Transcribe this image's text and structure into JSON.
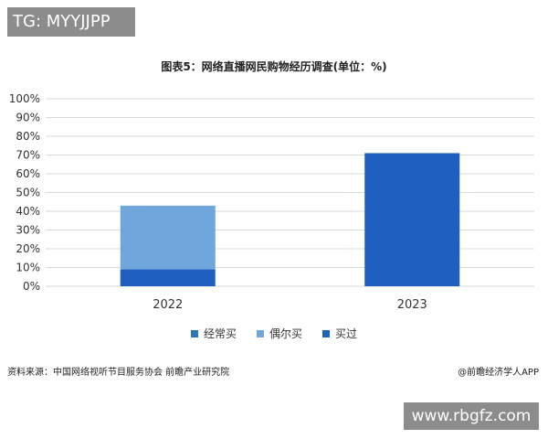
{
  "top_tag": "TG: MYYJJPP",
  "chart_data": {
    "type": "bar",
    "title": "图表5：网络直播网民购物经历调查(单位：%)",
    "categories": [
      "2022",
      "2023"
    ],
    "series": [
      {
        "name": "经常买",
        "values": [
          null,
          null
        ],
        "color": "#2e75b6"
      },
      {
        "name": "偶尔买",
        "values": [
          null,
          null
        ],
        "color": "#6fa6dc"
      },
      {
        "name": "买过",
        "values": [
          null,
          null
        ],
        "color": "#1f5fbf"
      }
    ],
    "stack_components": {
      "2022": [
        {
          "label": "",
          "value": 9,
          "color": "#1f5fbf"
        },
        {
          "label": "",
          "value": 34,
          "color": "#6fa6dc"
        }
      ],
      "2023": [
        {
          "label": "",
          "value": 71,
          "color": "#1f5fbf"
        }
      ]
    },
    "yticks": [
      "0%",
      "10%",
      "20%",
      "30%",
      "40%",
      "50%",
      "60%",
      "70%",
      "80%",
      "90%",
      "100%"
    ],
    "ylim": [
      0,
      100
    ],
    "grid": true,
    "legend_position": "bottom"
  },
  "legend": [
    {
      "label": "经常买",
      "color": "#2e75b6"
    },
    {
      "label": "偶尔买",
      "color": "#6fa6dc"
    },
    {
      "label": "买过",
      "color": "#1f5fbf"
    }
  ],
  "source": "资料来源：中国网络视听节目服务协会 前瞻产业研究院",
  "credit": "@前瞻经济学人APP",
  "bottom_watermark": "www.rbgfz.com"
}
